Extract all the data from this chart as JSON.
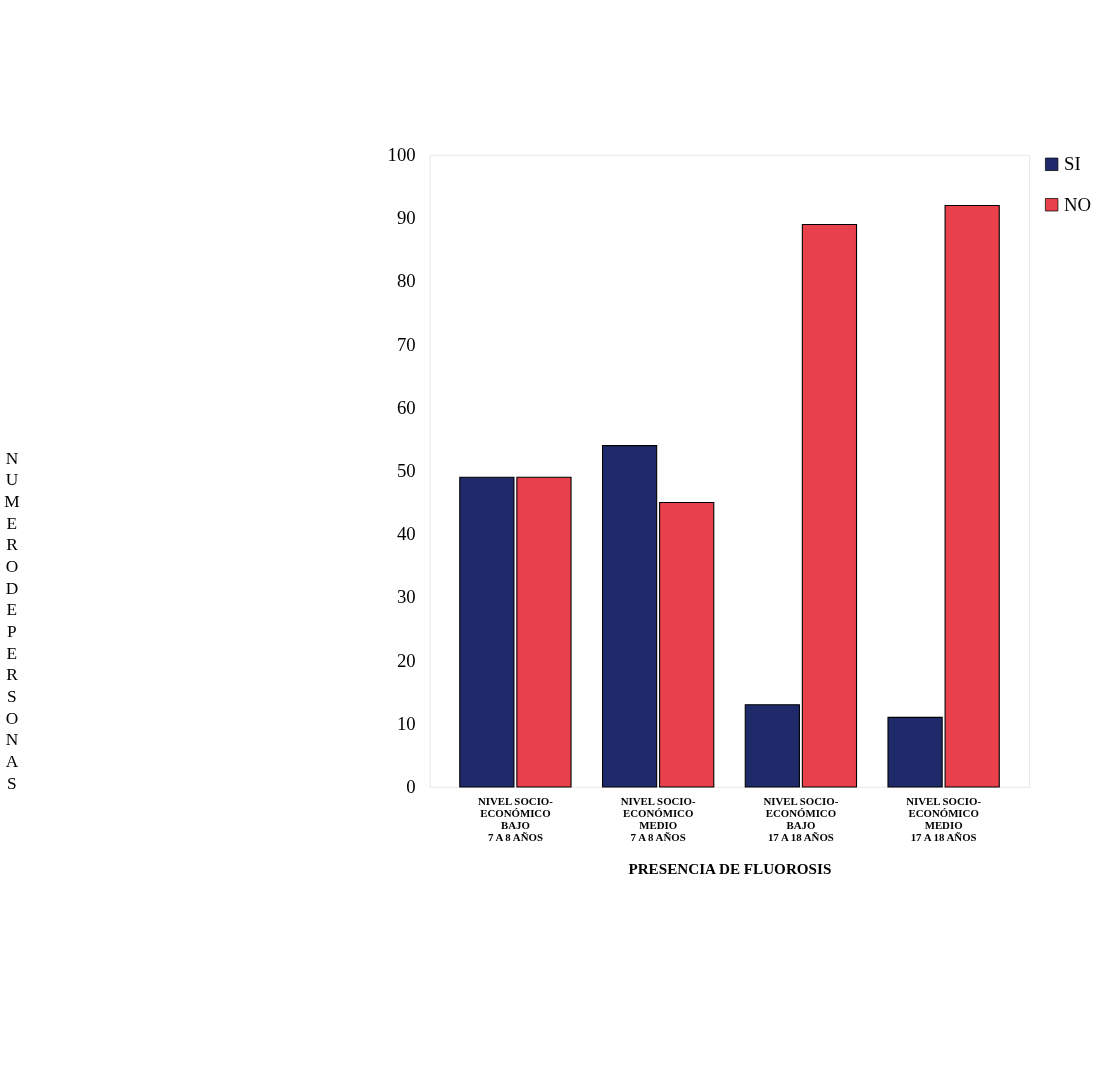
{
  "chart_data": {
    "type": "bar",
    "xlabel": "PRESENCIA DE FLUOROSIS",
    "ylabel": "NUMERO DE PERSONAS",
    "categories": [
      "NIVEL SOCIO-\nECONÓMICO\nBAJO\n7 A 8 AÑOS",
      "NIVEL SOCIO-\nECONÓMICO\nMEDIO\n7 A 8 AÑOS",
      "NIVEL SOCIO-\nECONÓMICO\nBAJO\n17 A 18 AÑOS",
      "NIVEL SOCIO-\nECONÓMICO\nMEDIO\n17 A 18 AÑOS"
    ],
    "series": [
      {
        "name": "SI",
        "color": "#1f2a6b",
        "values": [
          49,
          54,
          13,
          11
        ]
      },
      {
        "name": "NO",
        "color": "#e8414b",
        "values": [
          49,
          45,
          89,
          92
        ]
      }
    ],
    "ylim": [
      0,
      100
    ],
    "yticks": [
      0,
      10,
      20,
      30,
      40,
      50,
      60,
      70,
      80,
      90,
      100
    ],
    "grid": false,
    "legend": "right"
  }
}
